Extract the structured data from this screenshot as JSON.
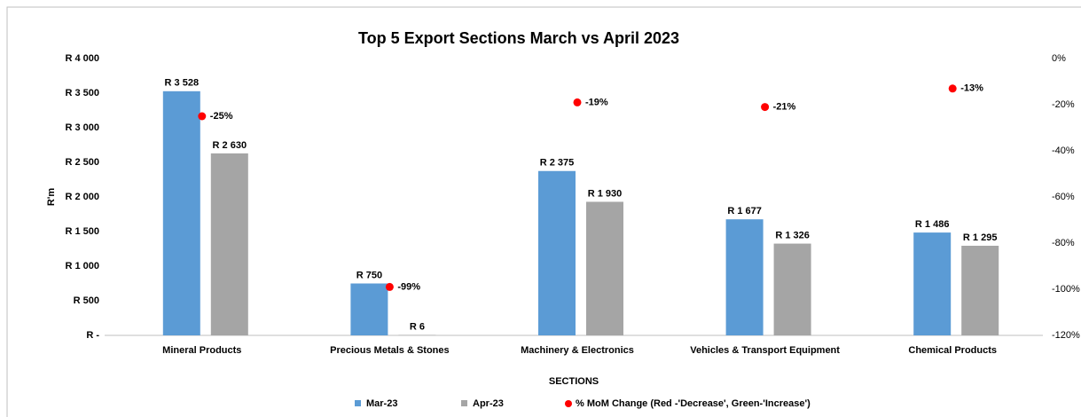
{
  "chart_data": {
    "type": "bar",
    "title": "Top 5 Export Sections March vs April 2023",
    "y_label": "R'm",
    "x_label": "SECTIONS",
    "categories": [
      "Mineral Products",
      "Precious Metals & Stones",
      "Machinery & Electronics",
      "Vehicles & Transport Equipment",
      "Chemical Products"
    ],
    "series": [
      {
        "name": "Mar-23",
        "color": "#5b9bd5",
        "type": "bar",
        "values": [
          3528,
          750,
          2375,
          1677,
          1486
        ],
        "value_labels": [
          "R 3 528",
          "R 750",
          "R 2 375",
          "R 1 677",
          "R 1 486"
        ]
      },
      {
        "name": "Apr-23",
        "color": "#a5a5a5",
        "type": "bar",
        "values": [
          2630,
          6,
          1930,
          1326,
          1295
        ],
        "value_labels": [
          "R 2 630",
          "R 6",
          "R 1 930",
          "R 1 326",
          "R 1 295"
        ]
      },
      {
        "name": "% MoM Change (Red -'Decrease', Green-'Increase')",
        "color": "#ff0000",
        "type": "scatter",
        "axis": "y2",
        "values": [
          -25,
          -99,
          -19,
          -21,
          -13
        ],
        "value_labels": [
          "-25%",
          "-99%",
          "-19%",
          "-21%",
          "-13%"
        ]
      }
    ],
    "ylim": [
      0,
      4000
    ],
    "yticks": [
      {
        "value": 0,
        "label": "R -"
      },
      {
        "value": 500,
        "label": "R 500"
      },
      {
        "value": 1000,
        "label": "R 1 000"
      },
      {
        "value": 1500,
        "label": "R 1 500"
      },
      {
        "value": 2000,
        "label": "R 2 000"
      },
      {
        "value": 2500,
        "label": "R 2 500"
      },
      {
        "value": 3000,
        "label": "R 3 000"
      },
      {
        "value": 3500,
        "label": "R 3 500"
      },
      {
        "value": 4000,
        "label": "R 4 000"
      }
    ],
    "y2lim": [
      -120,
      0
    ],
    "y2ticks": [
      {
        "value": 0,
        "label": "0%"
      },
      {
        "value": -20,
        "label": "-20%"
      },
      {
        "value": -40,
        "label": "-40%"
      },
      {
        "value": -60,
        "label": "-60%"
      },
      {
        "value": -80,
        "label": "-80%"
      },
      {
        "value": -100,
        "label": "-100%"
      },
      {
        "value": -120,
        "label": "-120%"
      }
    ],
    "legend": "bottom"
  }
}
